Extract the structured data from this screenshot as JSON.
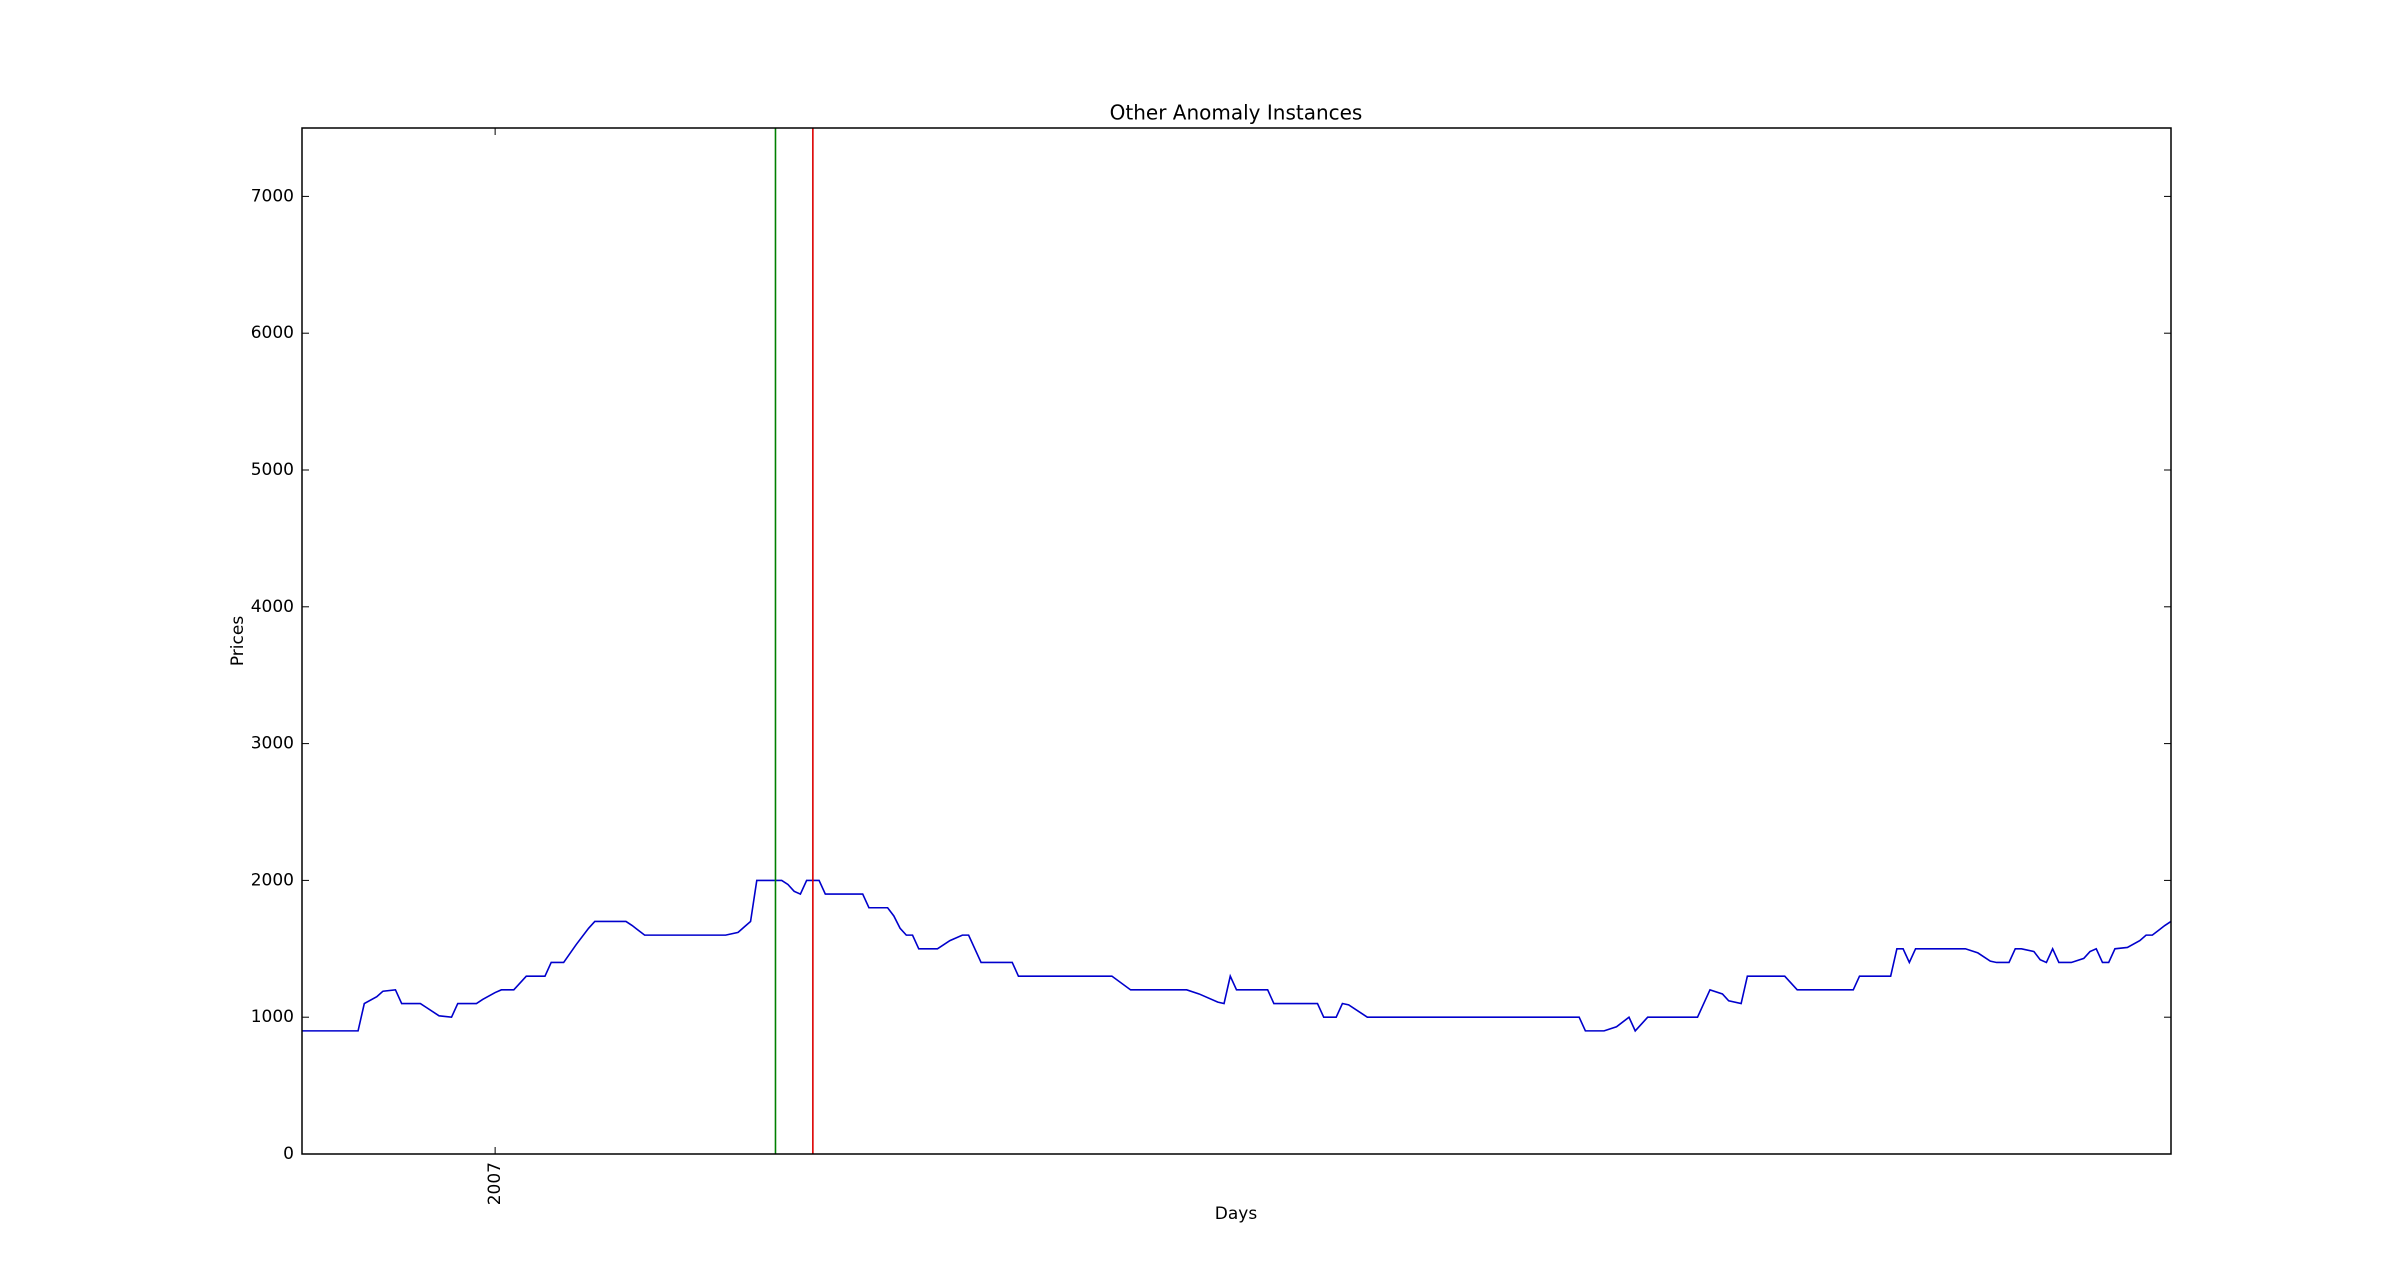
{
  "chart_data": {
    "type": "line",
    "title": "Other Anomaly Instances",
    "x_label": "Days",
    "y_label": "Prices",
    "x": [
      0,
      9,
      10,
      12,
      13,
      15,
      16,
      19,
      20,
      22,
      24,
      25,
      28,
      29,
      31,
      32,
      34,
      36,
      39,
      40,
      42,
      44,
      46,
      47,
      52,
      53,
      55,
      68,
      70,
      71,
      72,
      73,
      77,
      78,
      79,
      80,
      81,
      83,
      84,
      90,
      91,
      94,
      95,
      96,
      97,
      98,
      99,
      102,
      104,
      106,
      107,
      109,
      114,
      115,
      130,
      133,
      142,
      144,
      147,
      148,
      149,
      150,
      155,
      156,
      163,
      164,
      166,
      167,
      168,
      170,
      171,
      205,
      206,
      209,
      211,
      213,
      214,
      216,
      224,
      226,
      228,
      229,
      231,
      232,
      238,
      240,
      249,
      250,
      255,
      256,
      257,
      258,
      259,
      267,
      269,
      271,
      272,
      274,
      275,
      276,
      278,
      279,
      280,
      281,
      282,
      284,
      286,
      287,
      288,
      289,
      290,
      291,
      293,
      295,
      296,
      297,
      299,
      300
    ],
    "values": [
      900,
      900,
      1100,
      1150,
      1190,
      1200,
      1100,
      1100,
      1070,
      1010,
      1000,
      1100,
      1100,
      1130,
      1180,
      1200,
      1200,
      1300,
      1300,
      1400,
      1400,
      1530,
      1650,
      1700,
      1700,
      1670,
      1600,
      1600,
      1620,
      1660,
      1700,
      2000,
      2000,
      1970,
      1920,
      1900,
      2000,
      2000,
      1900,
      1900,
      1800,
      1800,
      1740,
      1650,
      1600,
      1600,
      1500,
      1500,
      1560,
      1600,
      1600,
      1400,
      1400,
      1300,
      1300,
      1200,
      1200,
      1170,
      1110,
      1100,
      1300,
      1200,
      1200,
      1100,
      1100,
      1000,
      1000,
      1100,
      1090,
      1030,
      1000,
      1000,
      900,
      900,
      930,
      1000,
      900,
      1000,
      1000,
      1200,
      1170,
      1120,
      1100,
      1300,
      1300,
      1200,
      1200,
      1300,
      1300,
      1500,
      1500,
      1400,
      1500,
      1500,
      1470,
      1410,
      1400,
      1400,
      1500,
      1500,
      1480,
      1420,
      1400,
      1500,
      1400,
      1400,
      1430,
      1480,
      1500,
      1400,
      1400,
      1500,
      1510,
      1560,
      1600,
      1600,
      1670,
      1700
    ],
    "color": "#0000cc",
    "vlines": [
      {
        "x": 76,
        "color": "#008000"
      },
      {
        "x": 82,
        "color": "#dd0000"
      }
    ],
    "xlim": [
      0,
      300
    ],
    "xticks": [
      {
        "value": 31,
        "label": "2007"
      }
    ],
    "ylim": [
      0,
      7500
    ],
    "yticks": [
      0,
      1000,
      2000,
      3000,
      4000,
      5000,
      6000,
      7000
    ]
  }
}
